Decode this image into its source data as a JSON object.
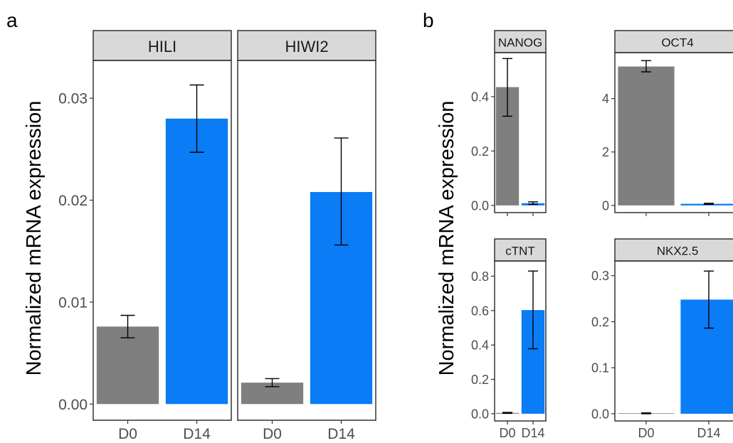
{
  "chart_data": [
    {
      "panel": "a",
      "type": "bar",
      "ylabel": "Normalized mRNA expression",
      "ylim": [
        0,
        0.033
      ],
      "yticks": [
        "0.00",
        "0.01",
        "0.02",
        "0.03"
      ],
      "ytick_values": [
        0,
        0.01,
        0.02,
        0.03
      ],
      "categories": [
        "D0",
        "D14"
      ],
      "colors": [
        "#7f7f7f",
        "#0a7cf5"
      ],
      "grid": false,
      "facets": [
        {
          "title": "HILI",
          "values": [
            0.0076,
            0.028
          ],
          "errors": [
            [
              0.0065,
              0.0087
            ],
            [
              0.0247,
              0.0313
            ]
          ]
        },
        {
          "title": "HIWI2",
          "values": [
            0.0021,
            0.0208
          ],
          "errors": [
            [
              0.0017,
              0.0025
            ],
            [
              0.0156,
              0.0261
            ]
          ]
        }
      ]
    },
    {
      "panel": "b",
      "type": "bar",
      "ylabel": "Normalized mRNA expression",
      "categories": [
        "D0",
        "D14"
      ],
      "colors": [
        "#7f7f7f",
        "#0a7cf5"
      ],
      "grid": false,
      "facets": [
        {
          "title": "NANOG",
          "ylim": [
            0,
            0.55
          ],
          "yticks": [
            "0.0",
            "0.2",
            "0.4"
          ],
          "ytick_values": [
            0,
            0.2,
            0.4
          ],
          "values": [
            0.435,
            0.008
          ],
          "errors": [
            [
              0.328,
              0.54
            ],
            [
              0.004,
              0.013
            ]
          ]
        },
        {
          "title": "OCT4",
          "ylim": [
            0,
            5.6
          ],
          "yticks": [
            "0",
            "2",
            "4"
          ],
          "ytick_values": [
            0,
            2,
            4
          ],
          "values": [
            5.2,
            0.06
          ],
          "errors": [
            [
              5.0,
              5.42
            ],
            [
              0.04,
              0.08
            ]
          ]
        },
        {
          "title": "cTNT",
          "ylim": [
            0,
            0.87
          ],
          "yticks": [
            "0.0",
            "0.2",
            "0.4",
            "0.6",
            "0.8"
          ],
          "ytick_values": [
            0,
            0.2,
            0.4,
            0.6,
            0.8
          ],
          "values": [
            0.005,
            0.603
          ],
          "errors": [
            [
              0.002,
              0.008
            ],
            [
              0.378,
              0.83
            ]
          ]
        },
        {
          "title": "NKX2.5",
          "ylim": [
            0,
            0.325
          ],
          "yticks": [
            "0.0",
            "0.1",
            "0.2",
            "0.3"
          ],
          "ytick_values": [
            0,
            0.1,
            0.2,
            0.3
          ],
          "values": [
            0.001,
            0.248
          ],
          "errors": [
            [
              0.0,
              0.002
            ],
            [
              0.186,
              0.31
            ]
          ]
        }
      ]
    }
  ]
}
